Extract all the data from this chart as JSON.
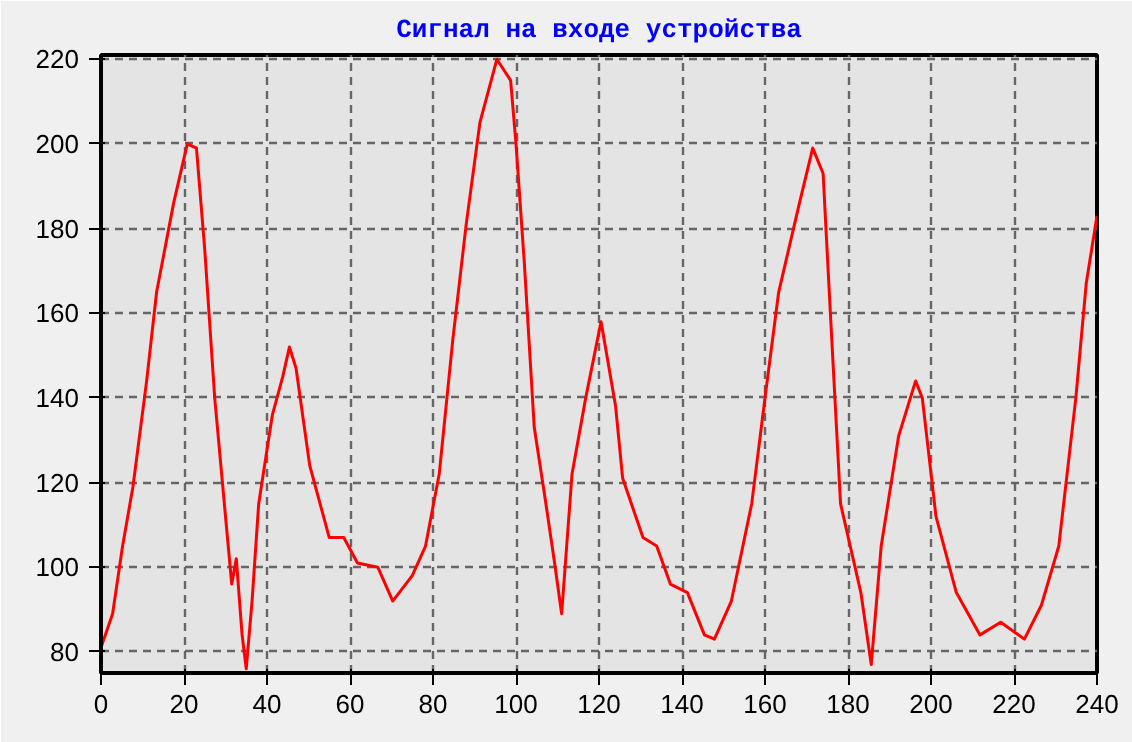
{
  "chart_data": {
    "type": "line",
    "title": "Сигнал на входе устройства",
    "x": [
      0,
      2.8,
      5.2,
      7.7,
      11,
      13.4,
      17.5,
      20.8,
      23,
      25,
      27.4,
      30,
      31.5,
      32.6,
      34,
      35,
      36.4,
      38,
      41.3,
      43.8,
      45.4,
      47,
      50.3,
      55,
      58.5,
      61.8,
      66.7,
      70.3,
      75,
      78.2,
      81.5,
      84.8,
      88,
      91.3,
      95.4,
      98.7,
      100,
      102,
      104.4,
      106.9,
      109.3,
      111,
      113.5,
      116.8,
      120.5,
      124,
      125.7,
      130.6,
      133.9,
      137.2,
      141.3,
      145.4,
      147.8,
      151.9,
      156.8,
      160,
      163.3,
      168.3,
      171.5,
      174,
      175.7,
      178.2,
      183.1,
      185.6,
      188,
      192.2,
      196.3,
      197.9,
      201.2,
      206.1,
      211.8,
      216.8,
      222.5,
      226.6,
      230.8,
      234.9,
      237.4,
      240
    ],
    "series": [
      {
        "color": "#ff0000",
        "values": [
          81,
          89,
          105,
          119,
          144,
          165,
          186,
          200,
          199,
          175,
          140,
          112,
          96,
          102,
          84,
          76,
          92,
          115,
          136,
          145,
          152,
          147,
          124,
          107,
          107,
          101,
          100,
          92,
          98,
          105,
          122,
          154,
          181,
          205,
          220,
          215,
          200,
          172,
          133,
          117,
          101,
          89,
          122,
          140,
          158,
          138,
          121,
          107,
          105,
          96,
          94,
          84,
          83,
          92,
          115,
          140,
          165,
          186,
          199,
          193,
          161,
          115,
          94,
          77,
          105,
          131,
          144,
          140,
          112,
          94,
          84,
          87,
          83,
          91,
          105,
          140,
          167,
          183
        ]
      }
    ],
    "xlim": [
      0,
      240
    ],
    "ylim": [
      75,
      221
    ],
    "xticks": [
      0,
      20,
      40,
      60,
      80,
      100,
      120,
      140,
      160,
      180,
      200,
      220,
      240
    ],
    "yticks": [
      80,
      100,
      120,
      140,
      160,
      180,
      200,
      220
    ],
    "grid": true,
    "marker": "none",
    "line_style": "solid"
  }
}
